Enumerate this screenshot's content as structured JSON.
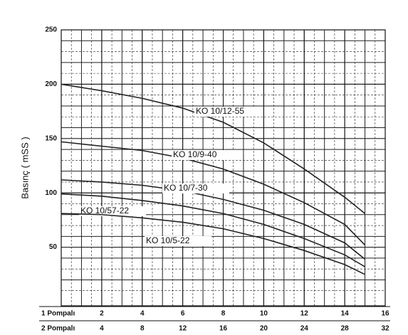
{
  "chart_data": {
    "type": "line",
    "ylabel": "Basınç ( mSS )",
    "xlabel": "1 Pompalı",
    "x2label": "2 Pompalı",
    "xlim": [
      0,
      16
    ],
    "xticks": [
      2,
      4,
      6,
      8,
      10,
      12,
      14,
      16
    ],
    "x2lim": [
      0,
      32
    ],
    "x2ticks": [
      4,
      8,
      12,
      16,
      20,
      24,
      28,
      32
    ],
    "ylim": [
      0,
      250
    ],
    "yticks": [
      50,
      100,
      150,
      200,
      250
    ],
    "grid": true,
    "x": [
      0,
      2,
      4,
      6,
      8,
      10,
      12,
      14,
      15
    ],
    "series": [
      {
        "name": "KO 10/12-55",
        "color": "#222222",
        "values": [
          200,
          194,
          187,
          178,
          165,
          146,
          122,
          96,
          81
        ]
      },
      {
        "name": "KO 10/9-40",
        "color": "#222222",
        "values": [
          147,
          143,
          139,
          132,
          122,
          108,
          91,
          71,
          52
        ]
      },
      {
        "name": "KO 10/7-30",
        "color": "#222222",
        "values": [
          112,
          110,
          107,
          102,
          94,
          84,
          71,
          54,
          39
        ]
      },
      {
        "name": "KO 10/57-22",
        "color": "#222222",
        "values": [
          99,
          97,
          93,
          88,
          81,
          71,
          58,
          43,
          32
        ]
      },
      {
        "name": "KO 10/5-22",
        "color": "#222222",
        "values": [
          81,
          80,
          77,
          73,
          67,
          58,
          47,
          34,
          25
        ]
      }
    ]
  }
}
